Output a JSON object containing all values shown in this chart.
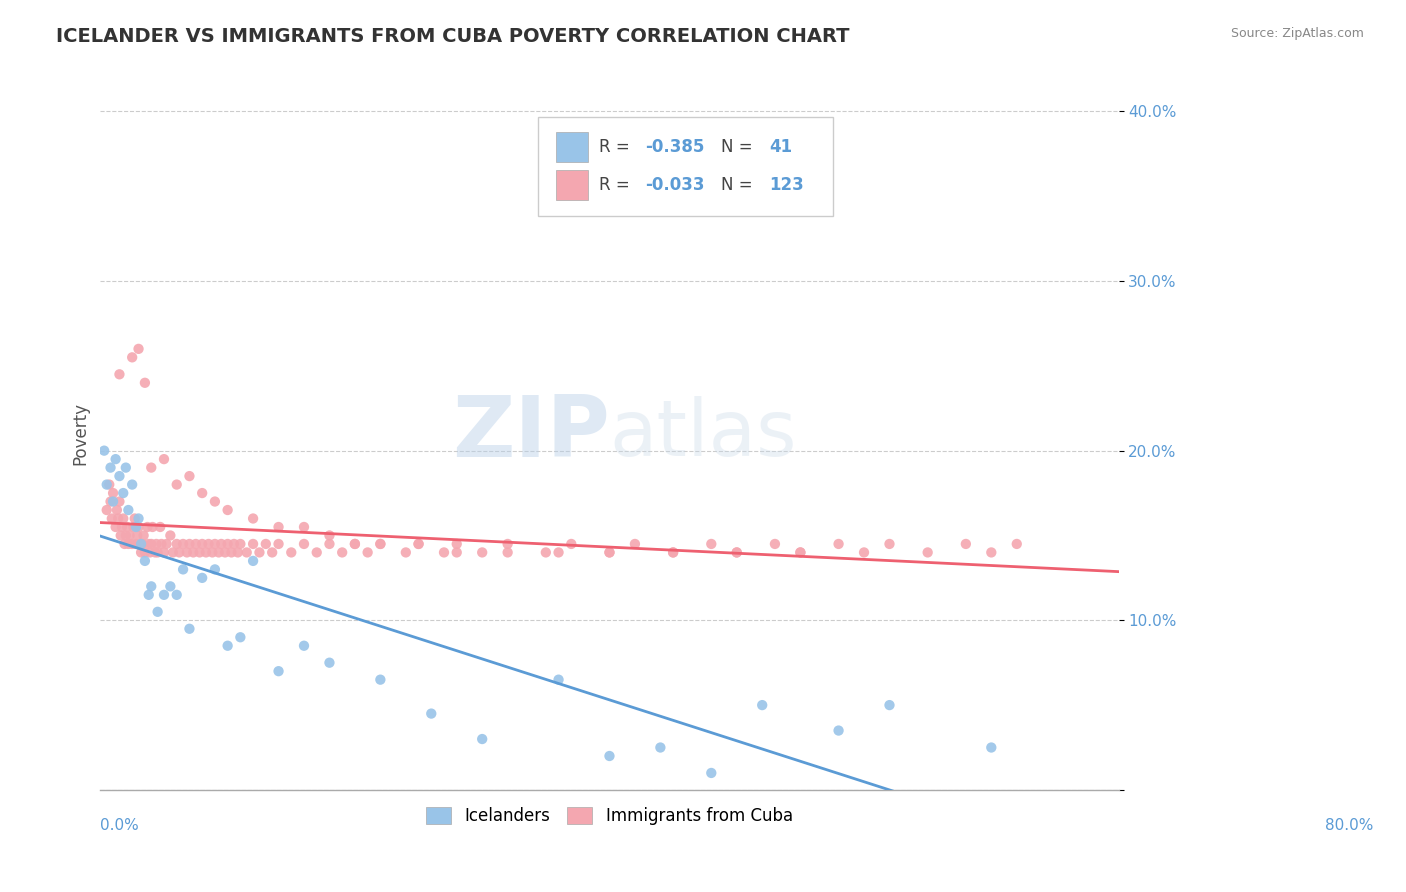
{
  "title": "ICELANDER VS IMMIGRANTS FROM CUBA POVERTY CORRELATION CHART",
  "source": "Source: ZipAtlas.com",
  "ylabel": "Poverty",
  "xlim": [
    0.0,
    0.8
  ],
  "ylim": [
    0.0,
    0.42
  ],
  "icelander_color": "#99c4e8",
  "cuba_color": "#f4a7b0",
  "icelander_line_color": "#5b9bd5",
  "cuba_line_color": "#ee6070",
  "watermark_zip": "ZIP",
  "watermark_atlas": "atlas",
  "legend_R1": "-0.385",
  "legend_N1": "41",
  "legend_R2": "-0.033",
  "legend_N2": "123",
  "icelander_x": [
    0.003,
    0.005,
    0.008,
    0.01,
    0.012,
    0.015,
    0.018,
    0.02,
    0.022,
    0.025,
    0.028,
    0.03,
    0.032,
    0.035,
    0.038,
    0.04,
    0.045,
    0.05,
    0.055,
    0.06,
    0.065,
    0.07,
    0.08,
    0.09,
    0.1,
    0.11,
    0.12,
    0.14,
    0.16,
    0.18,
    0.22,
    0.26,
    0.3,
    0.36,
    0.4,
    0.44,
    0.48,
    0.52,
    0.58,
    0.62,
    0.7
  ],
  "icelander_y": [
    0.2,
    0.18,
    0.19,
    0.17,
    0.195,
    0.185,
    0.175,
    0.19,
    0.165,
    0.18,
    0.155,
    0.16,
    0.145,
    0.135,
    0.115,
    0.12,
    0.105,
    0.115,
    0.12,
    0.115,
    0.13,
    0.095,
    0.125,
    0.13,
    0.085,
    0.09,
    0.135,
    0.07,
    0.085,
    0.075,
    0.065,
    0.045,
    0.03,
    0.065,
    0.02,
    0.025,
    0.01,
    0.05,
    0.035,
    0.05,
    0.025
  ],
  "cuba_x": [
    0.005,
    0.007,
    0.008,
    0.009,
    0.01,
    0.012,
    0.013,
    0.014,
    0.015,
    0.016,
    0.017,
    0.018,
    0.019,
    0.02,
    0.021,
    0.022,
    0.023,
    0.025,
    0.026,
    0.027,
    0.028,
    0.029,
    0.03,
    0.032,
    0.033,
    0.034,
    0.035,
    0.037,
    0.038,
    0.039,
    0.04,
    0.041,
    0.043,
    0.044,
    0.045,
    0.047,
    0.048,
    0.05,
    0.052,
    0.055,
    0.057,
    0.06,
    0.062,
    0.065,
    0.068,
    0.07,
    0.073,
    0.075,
    0.078,
    0.08,
    0.083,
    0.085,
    0.088,
    0.09,
    0.093,
    0.095,
    0.098,
    0.1,
    0.103,
    0.105,
    0.108,
    0.11,
    0.115,
    0.12,
    0.125,
    0.13,
    0.135,
    0.14,
    0.15,
    0.16,
    0.17,
    0.18,
    0.19,
    0.2,
    0.21,
    0.22,
    0.24,
    0.25,
    0.27,
    0.28,
    0.3,
    0.32,
    0.35,
    0.37,
    0.4,
    0.42,
    0.45,
    0.48,
    0.5,
    0.53,
    0.55,
    0.58,
    0.6,
    0.62,
    0.65,
    0.68,
    0.7,
    0.72,
    0.03,
    0.025,
    0.015,
    0.035,
    0.04,
    0.05,
    0.06,
    0.07,
    0.08,
    0.09,
    0.1,
    0.12,
    0.14,
    0.16,
    0.18,
    0.2,
    0.22,
    0.25,
    0.28,
    0.32,
    0.36,
    0.4,
    0.45,
    0.5,
    0.55
  ],
  "cuba_y": [
    0.165,
    0.18,
    0.17,
    0.16,
    0.175,
    0.155,
    0.165,
    0.16,
    0.17,
    0.15,
    0.155,
    0.16,
    0.145,
    0.15,
    0.155,
    0.145,
    0.15,
    0.145,
    0.155,
    0.16,
    0.145,
    0.15,
    0.155,
    0.14,
    0.145,
    0.15,
    0.14,
    0.155,
    0.145,
    0.14,
    0.145,
    0.155,
    0.14,
    0.145,
    0.14,
    0.155,
    0.145,
    0.14,
    0.145,
    0.15,
    0.14,
    0.145,
    0.14,
    0.145,
    0.14,
    0.145,
    0.14,
    0.145,
    0.14,
    0.145,
    0.14,
    0.145,
    0.14,
    0.145,
    0.14,
    0.145,
    0.14,
    0.145,
    0.14,
    0.145,
    0.14,
    0.145,
    0.14,
    0.145,
    0.14,
    0.145,
    0.14,
    0.145,
    0.14,
    0.145,
    0.14,
    0.145,
    0.14,
    0.145,
    0.14,
    0.145,
    0.14,
    0.145,
    0.14,
    0.145,
    0.14,
    0.145,
    0.14,
    0.145,
    0.14,
    0.145,
    0.14,
    0.145,
    0.14,
    0.145,
    0.14,
    0.145,
    0.14,
    0.145,
    0.14,
    0.145,
    0.14,
    0.145,
    0.26,
    0.255,
    0.245,
    0.24,
    0.19,
    0.195,
    0.18,
    0.185,
    0.175,
    0.17,
    0.165,
    0.16,
    0.155,
    0.155,
    0.15,
    0.145,
    0.145,
    0.145,
    0.14,
    0.14,
    0.14,
    0.14,
    0.14,
    0.14,
    0.14
  ]
}
